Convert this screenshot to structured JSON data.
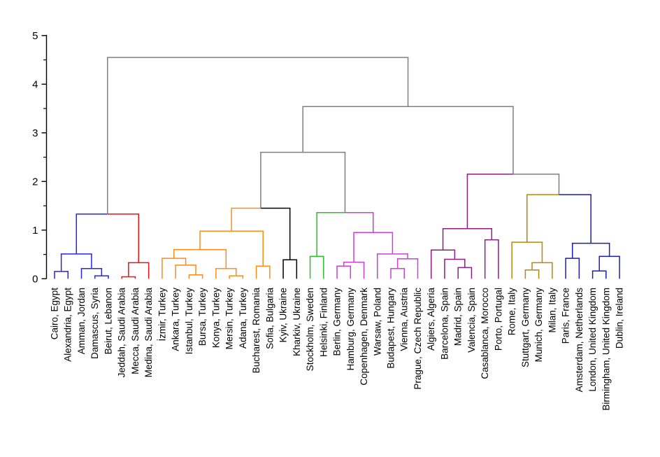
{
  "figure": {
    "background": "#ffffff",
    "description": "Hierarchical clustering dendrogram of cities"
  },
  "chart_data": {
    "type": "dendrogram",
    "orientation": "top",
    "title": "",
    "xlabel": "",
    "ylabel": "",
    "y_axis": {
      "range": [
        0,
        5
      ],
      "major_ticks": [
        0,
        1,
        2,
        3,
        4,
        5
      ],
      "minor_tick_step": 0.5
    },
    "colors": {
      "blue": "#2424e8",
      "red": "#ee1111",
      "orange": "#ff8b17",
      "black": "#000000",
      "green": "#25c425",
      "magenta": "#cb3fd6",
      "purple": "#8c1d82",
      "olive": "#b8860b",
      "navy": "#1d1dae",
      "gray": "#7f7f7f"
    },
    "leaves": [
      {
        "label": "Cairo, Egypt",
        "cluster": "blue"
      },
      {
        "label": "Alexandria, Egypt",
        "cluster": "blue"
      },
      {
        "label": "Amman, Jordan",
        "cluster": "blue"
      },
      {
        "label": "Damascus, Syria",
        "cluster": "blue"
      },
      {
        "label": "Beirut, Lebanon",
        "cluster": "blue"
      },
      {
        "label": "Jeddah, Saudi Arabia",
        "cluster": "red"
      },
      {
        "label": "Mecca, Saudi Arabia",
        "cluster": "red"
      },
      {
        "label": "Medina, Saudi Arabia",
        "cluster": "red"
      },
      {
        "label": "İzmir, Turkey",
        "cluster": "orange"
      },
      {
        "label": "Ankara, Turkey",
        "cluster": "orange"
      },
      {
        "label": "Istanbul, Turkey",
        "cluster": "orange"
      },
      {
        "label": "Bursa, Turkey",
        "cluster": "orange"
      },
      {
        "label": "Konya, Turkey",
        "cluster": "orange"
      },
      {
        "label": "Mersin, Turkey",
        "cluster": "orange"
      },
      {
        "label": "Adana, Turkey",
        "cluster": "orange"
      },
      {
        "label": "Bucharest, Romania",
        "cluster": "orange"
      },
      {
        "label": "Sofia, Bulgaria",
        "cluster": "orange"
      },
      {
        "label": "Kyiv, Ukraine",
        "cluster": "black"
      },
      {
        "label": "Kharkiv, Ukraine",
        "cluster": "black"
      },
      {
        "label": "Stockholm, Sweden",
        "cluster": "green"
      },
      {
        "label": "Helsinki, Finland",
        "cluster": "green"
      },
      {
        "label": "Berlin, Germany",
        "cluster": "magenta"
      },
      {
        "label": "Hamburg, Germany",
        "cluster": "magenta"
      },
      {
        "label": "Copenhagen, Denmark",
        "cluster": "magenta"
      },
      {
        "label": "Warsaw, Poland",
        "cluster": "magenta"
      },
      {
        "label": "Budapest, Hungary",
        "cluster": "magenta"
      },
      {
        "label": "Vienna, Austria",
        "cluster": "magenta"
      },
      {
        "label": "Prague, Czech Republic",
        "cluster": "magenta"
      },
      {
        "label": "Algiers, Algeria",
        "cluster": "purple"
      },
      {
        "label": "Barcelona, Spain",
        "cluster": "purple"
      },
      {
        "label": "Madrid, Spain",
        "cluster": "purple"
      },
      {
        "label": "Valencia, Spain",
        "cluster": "purple"
      },
      {
        "label": "Casablanca, Morocco",
        "cluster": "purple"
      },
      {
        "label": "Porto, Portugal",
        "cluster": "purple"
      },
      {
        "label": "Rome, Italy",
        "cluster": "olive"
      },
      {
        "label": "Stuttgart, Germany",
        "cluster": "olive"
      },
      {
        "label": "Munich, Germany",
        "cluster": "olive"
      },
      {
        "label": "Milan, Italy",
        "cluster": "olive"
      },
      {
        "label": "Paris, France",
        "cluster": "navy"
      },
      {
        "label": "Amsterdam, Netherlands",
        "cluster": "navy"
      },
      {
        "label": "London, United Kingdom",
        "cluster": "navy"
      },
      {
        "label": "Birmingham, United Kingdom",
        "cluster": "navy"
      },
      {
        "label": "Dublin, Ireland",
        "cluster": "navy"
      }
    ],
    "merges": [
      {
        "id": "M1",
        "left": "L3",
        "right": "L4",
        "height": 0.06,
        "left_color": "blue",
        "right_color": "blue"
      },
      {
        "id": "M2",
        "left": "L2",
        "right": "M1",
        "height": 0.21,
        "left_color": "blue",
        "right_color": "blue"
      },
      {
        "id": "M3",
        "left": "L0",
        "right": "L1",
        "height": 0.15,
        "left_color": "blue",
        "right_color": "blue"
      },
      {
        "id": "M4",
        "left": "M3",
        "right": "M2",
        "height": 0.51,
        "left_color": "blue",
        "right_color": "blue"
      },
      {
        "id": "M5",
        "left": "L5",
        "right": "L6",
        "height": 0.04,
        "left_color": "red",
        "right_color": "red"
      },
      {
        "id": "M6",
        "left": "M5",
        "right": "L7",
        "height": 0.33,
        "left_color": "red",
        "right_color": "red"
      },
      {
        "id": "M7",
        "left": "M4",
        "right": "M6",
        "height": 1.33,
        "left_color": "blue",
        "right_color": "red"
      },
      {
        "id": "M8",
        "left": "L10",
        "right": "L11",
        "height": 0.08,
        "left_color": "orange",
        "right_color": "orange"
      },
      {
        "id": "M9",
        "left": "L9",
        "right": "M8",
        "height": 0.28,
        "left_color": "orange",
        "right_color": "orange"
      },
      {
        "id": "M10",
        "left": "L8",
        "right": "M9",
        "height": 0.42,
        "left_color": "orange",
        "right_color": "orange"
      },
      {
        "id": "M11",
        "left": "L13",
        "right": "L14",
        "height": 0.06,
        "left_color": "orange",
        "right_color": "orange"
      },
      {
        "id": "M12",
        "left": "L12",
        "right": "M11",
        "height": 0.21,
        "left_color": "orange",
        "right_color": "orange"
      },
      {
        "id": "M13",
        "left": "M10",
        "right": "M12",
        "height": 0.6,
        "left_color": "orange",
        "right_color": "orange"
      },
      {
        "id": "M14",
        "left": "L15",
        "right": "L16",
        "height": 0.26,
        "left_color": "orange",
        "right_color": "orange"
      },
      {
        "id": "M15",
        "left": "M13",
        "right": "M14",
        "height": 0.98,
        "left_color": "orange",
        "right_color": "orange"
      },
      {
        "id": "M16",
        "left": "L17",
        "right": "L18",
        "height": 0.39,
        "left_color": "black",
        "right_color": "black"
      },
      {
        "id": "M17",
        "left": "M15",
        "right": "M16",
        "height": 1.45,
        "left_color": "orange",
        "right_color": "black"
      },
      {
        "id": "M18",
        "left": "L19",
        "right": "L20",
        "height": 0.46,
        "left_color": "green",
        "right_color": "green"
      },
      {
        "id": "M19",
        "left": "L21",
        "right": "L22",
        "height": 0.26,
        "left_color": "magenta",
        "right_color": "magenta"
      },
      {
        "id": "M20",
        "left": "M19",
        "right": "L23",
        "height": 0.34,
        "left_color": "magenta",
        "right_color": "magenta"
      },
      {
        "id": "M21",
        "left": "L25",
        "right": "L26",
        "height": 0.21,
        "left_color": "magenta",
        "right_color": "magenta"
      },
      {
        "id": "M22",
        "left": "M21",
        "right": "L27",
        "height": 0.41,
        "left_color": "magenta",
        "right_color": "magenta"
      },
      {
        "id": "M23",
        "left": "L24",
        "right": "M22",
        "height": 0.51,
        "left_color": "magenta",
        "right_color": "magenta"
      },
      {
        "id": "M24",
        "left": "M20",
        "right": "M23",
        "height": 0.95,
        "left_color": "magenta",
        "right_color": "magenta"
      },
      {
        "id": "M25",
        "left": "M18",
        "right": "M24",
        "height": 1.36,
        "left_color": "green",
        "right_color": "magenta"
      },
      {
        "id": "M26",
        "left": "M17",
        "right": "M25",
        "height": 2.6,
        "left_color": "gray",
        "right_color": "gray"
      },
      {
        "id": "M27",
        "left": "L30",
        "right": "L31",
        "height": 0.23,
        "left_color": "purple",
        "right_color": "purple"
      },
      {
        "id": "M28",
        "left": "L29",
        "right": "M27",
        "height": 0.4,
        "left_color": "purple",
        "right_color": "purple"
      },
      {
        "id": "M29",
        "left": "L28",
        "right": "M28",
        "height": 0.59,
        "left_color": "purple",
        "right_color": "purple"
      },
      {
        "id": "M30",
        "left": "L32",
        "right": "L33",
        "height": 0.8,
        "left_color": "purple",
        "right_color": "purple"
      },
      {
        "id": "M31",
        "left": "M29",
        "right": "M30",
        "height": 1.03,
        "left_color": "purple",
        "right_color": "purple"
      },
      {
        "id": "M32",
        "left": "L35",
        "right": "L36",
        "height": 0.18,
        "left_color": "olive",
        "right_color": "olive"
      },
      {
        "id": "M33",
        "left": "M32",
        "right": "L37",
        "height": 0.33,
        "left_color": "olive",
        "right_color": "olive"
      },
      {
        "id": "M34",
        "left": "L34",
        "right": "M33",
        "height": 0.75,
        "left_color": "olive",
        "right_color": "olive"
      },
      {
        "id": "M35",
        "left": "L38",
        "right": "L39",
        "height": 0.42,
        "left_color": "navy",
        "right_color": "navy"
      },
      {
        "id": "M36",
        "left": "L40",
        "right": "L41",
        "height": 0.16,
        "left_color": "navy",
        "right_color": "navy"
      },
      {
        "id": "M37",
        "left": "M36",
        "right": "L42",
        "height": 0.46,
        "left_color": "navy",
        "right_color": "navy"
      },
      {
        "id": "M38",
        "left": "M35",
        "right": "M37",
        "height": 0.73,
        "left_color": "navy",
        "right_color": "navy"
      },
      {
        "id": "M39",
        "left": "M34",
        "right": "M38",
        "height": 1.73,
        "left_color": "olive",
        "right_color": "navy"
      },
      {
        "id": "M40",
        "left": "M31",
        "right": "M39",
        "height": 2.15,
        "left_color": "purple",
        "right_color": "gray"
      },
      {
        "id": "M41",
        "left": "M26",
        "right": "M40",
        "height": 3.54,
        "left_color": "gray",
        "right_color": "gray"
      },
      {
        "id": "M42",
        "left": "M7",
        "right": "M41",
        "height": 4.55,
        "left_color": "gray",
        "right_color": "gray"
      }
    ]
  }
}
